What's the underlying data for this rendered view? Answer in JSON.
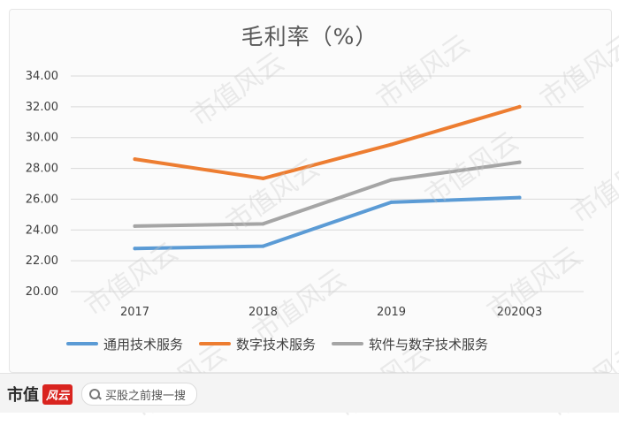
{
  "chart_data": {
    "type": "line",
    "title": "毛利率（%）",
    "xlabel": "",
    "ylabel": "",
    "categories": [
      "2017",
      "2018",
      "2019",
      "2020Q3"
    ],
    "ylim": [
      20,
      34
    ],
    "yticks": [
      "20.00",
      "22.00",
      "24.00",
      "26.00",
      "28.00",
      "30.00",
      "32.00",
      "34.00"
    ],
    "grid": true,
    "legend_position": "bottom",
    "series": [
      {
        "name": "通用技术服务",
        "values": [
          22.8,
          22.95,
          25.8,
          26.1
        ],
        "color": "#5b9bd5"
      },
      {
        "name": "数字技术服务",
        "values": [
          28.6,
          27.35,
          29.55,
          32.0
        ],
        "color": "#ed7d31"
      },
      {
        "name": "软件与数字技术服务",
        "values": [
          24.25,
          24.4,
          27.25,
          28.4
        ],
        "color": "#a5a5a5"
      }
    ]
  },
  "watermark": "市值风云",
  "footer": {
    "brand": "市值",
    "brand_mark": "风云",
    "search_icon": "search-icon",
    "search_text": "买股之前搜一搜"
  }
}
